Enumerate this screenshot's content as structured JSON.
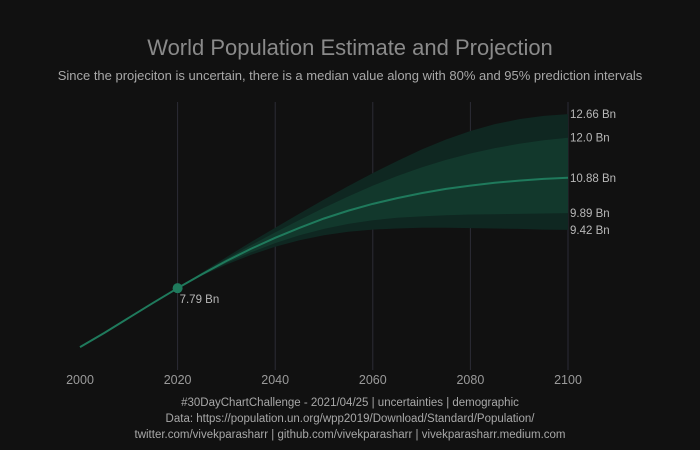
{
  "chart_data": {
    "type": "line",
    "title": "World Population Estimate and Projection",
    "subtitle": "Since the projeciton is uncertain, there is a median value along with 80% and 95% prediction intervals",
    "x_ticks": [
      2000,
      2020,
      2040,
      2060,
      2080,
      2100
    ],
    "xlim": [
      2000,
      2100
    ],
    "ylim": [
      5.5,
      13.0
    ],
    "grid": "vertical",
    "legend": "none",
    "colors": {
      "line": "#1f7a5c",
      "band80": "#12382c",
      "band95": "#0f2721",
      "grid": "#2c2c36"
    },
    "historical": {
      "x": [
        2000,
        2005,
        2010,
        2015,
        2020
      ],
      "y": [
        6.14,
        6.54,
        6.96,
        7.38,
        7.79
      ]
    },
    "median": {
      "x": [
        2020,
        2025,
        2030,
        2035,
        2040,
        2045,
        2050,
        2055,
        2060,
        2065,
        2070,
        2075,
        2080,
        2085,
        2090,
        2095,
        2100
      ],
      "y": [
        7.79,
        8.18,
        8.55,
        8.89,
        9.2,
        9.48,
        9.74,
        9.96,
        10.15,
        10.31,
        10.45,
        10.57,
        10.66,
        10.74,
        10.8,
        10.85,
        10.88
      ]
    },
    "pi80": {
      "lower": [
        7.79,
        8.16,
        8.49,
        8.79,
        9.05,
        9.27,
        9.45,
        9.59,
        9.69,
        9.76,
        9.8,
        9.83,
        9.85,
        9.86,
        9.87,
        9.88,
        9.89
      ],
      "upper": [
        7.79,
        8.21,
        8.61,
        8.99,
        9.35,
        9.7,
        10.04,
        10.36,
        10.66,
        10.93,
        11.17,
        11.38,
        11.56,
        11.71,
        11.83,
        11.93,
        12.0
      ]
    },
    "pi95": {
      "lower": [
        7.79,
        8.14,
        8.45,
        8.72,
        8.95,
        9.13,
        9.27,
        9.37,
        9.43,
        9.46,
        9.48,
        9.48,
        9.47,
        9.46,
        9.45,
        9.43,
        9.42
      ],
      "upper": [
        7.79,
        8.23,
        8.66,
        9.08,
        9.48,
        9.88,
        10.27,
        10.65,
        11.01,
        11.35,
        11.67,
        11.95,
        12.19,
        12.38,
        12.52,
        12.61,
        12.66
      ]
    },
    "point_label": {
      "x": 2020,
      "y": 7.79,
      "text": "7.79 Bn"
    },
    "end_labels": [
      {
        "y": 12.66,
        "text": "12.66 Bn"
      },
      {
        "y": 12.0,
        "text": "12.0 Bn"
      },
      {
        "y": 10.88,
        "text": "10.88 Bn"
      },
      {
        "y": 9.89,
        "text": "9.89 Bn"
      },
      {
        "y": 9.42,
        "text": "9.42 Bn"
      }
    ]
  },
  "footer": {
    "line1": "#30DayChartChallenge - 2021/04/25 | uncertainties | demographic",
    "line2": "Data: https://population.un.org/wpp2019/Download/Standard/Population/",
    "line3": "twitter.com/vivekparasharr | github.com/vivekparasharr | vivekparasharr.medium.com"
  }
}
